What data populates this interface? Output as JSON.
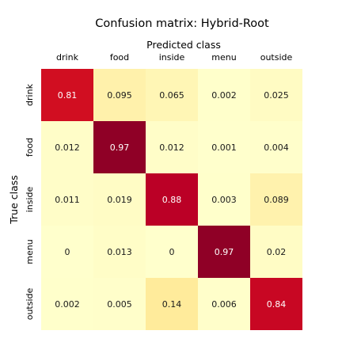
{
  "chart_data": {
    "type": "heatmap",
    "title": "Confusion matrix: Hybrid-Root",
    "xlabel": "Predicted class",
    "ylabel": "True class",
    "x_categories": [
      "drink",
      "food",
      "inside",
      "menu",
      "outside"
    ],
    "y_categories": [
      "drink",
      "food",
      "inside",
      "menu",
      "outside"
    ],
    "values": [
      [
        "0.81",
        "0.095",
        "0.065",
        "0.002",
        "0.025"
      ],
      [
        "0.012",
        "0.97",
        "0.012",
        "0.001",
        "0.004"
      ],
      [
        "0.011",
        "0.019",
        "0.88",
        "0.003",
        "0.089"
      ],
      [
        "0",
        "0.013",
        "0",
        "0.97",
        "0.02"
      ],
      [
        "0.002",
        "0.005",
        "0.14",
        "0.006",
        "0.84"
      ]
    ],
    "value_range": [
      0,
      1
    ],
    "colormap": "YlOrRd",
    "colorbar": false,
    "grid": false
  }
}
